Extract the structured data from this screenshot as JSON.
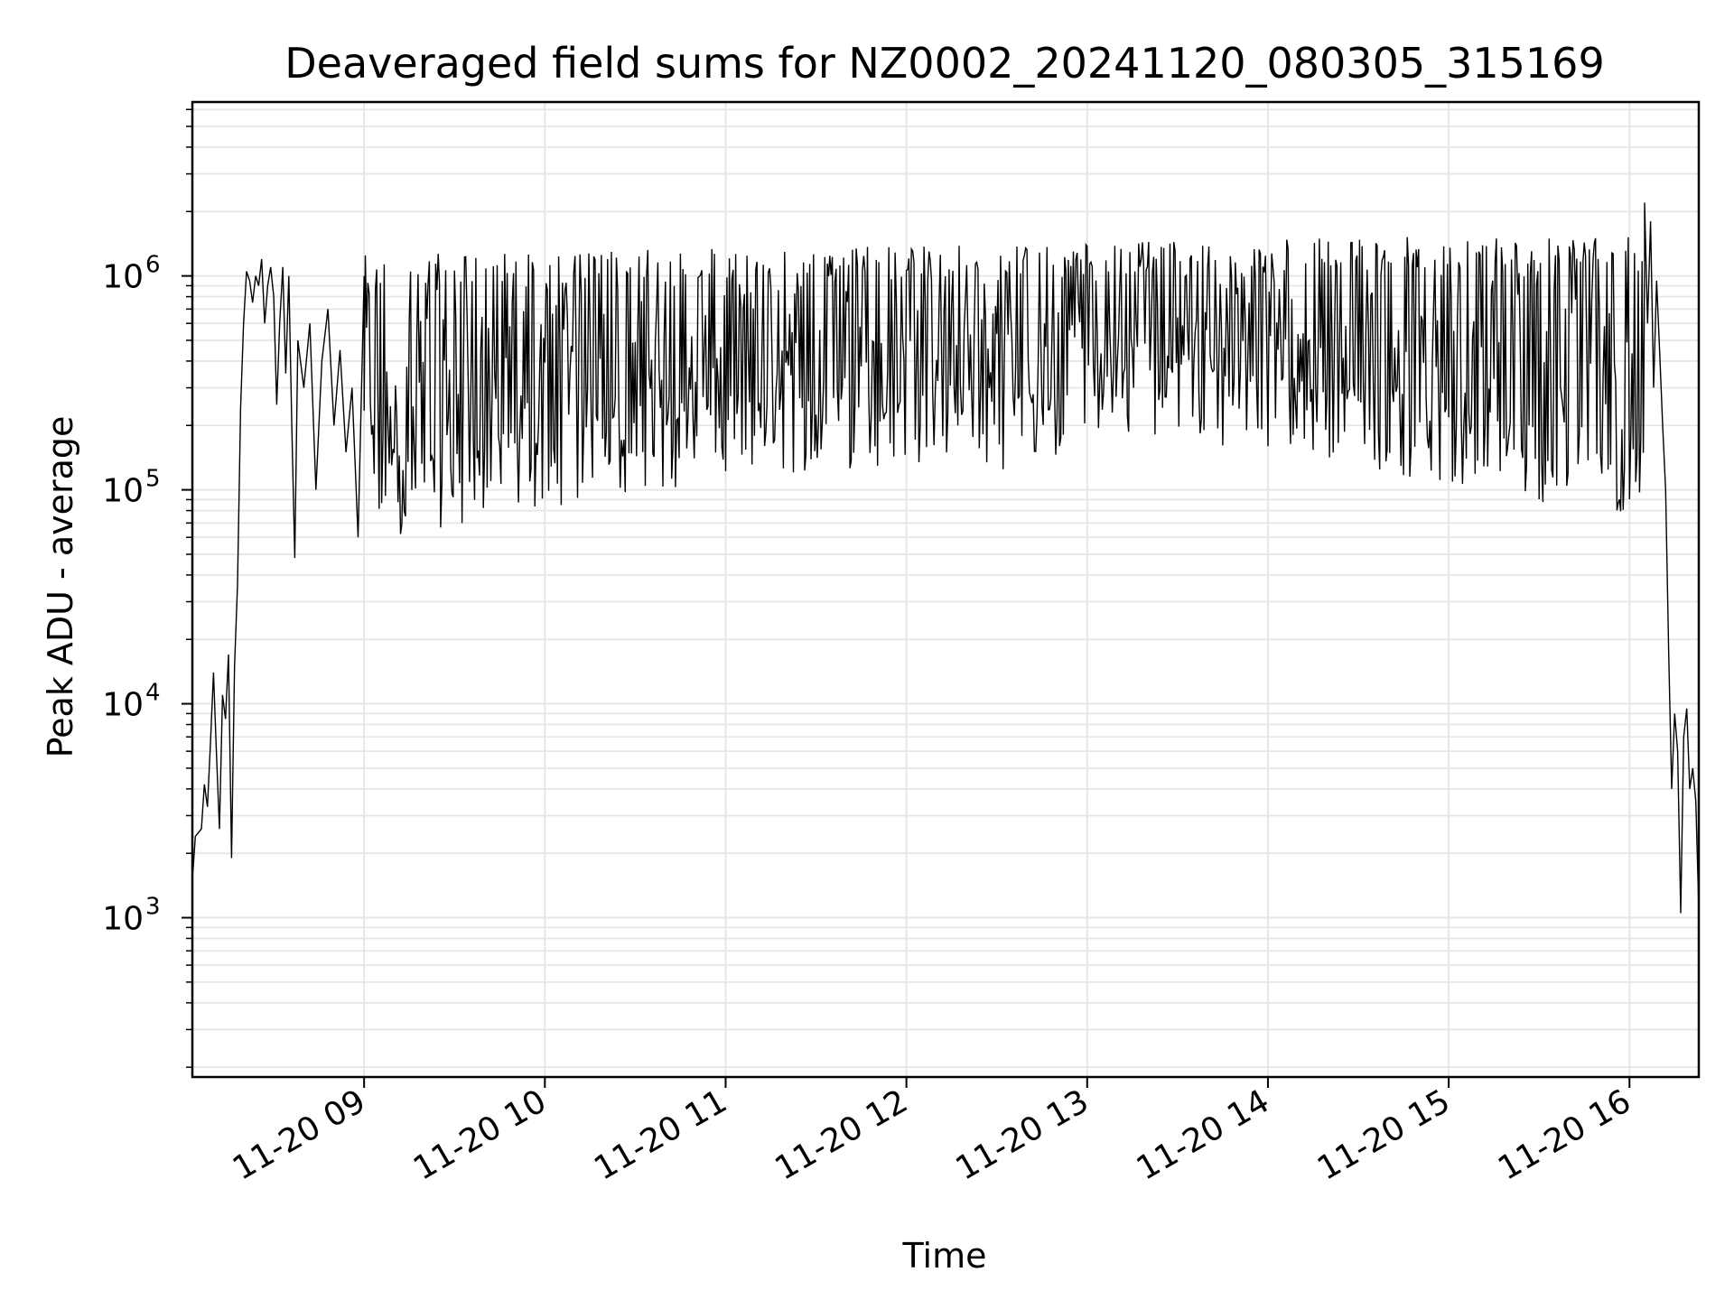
{
  "chart_data": {
    "type": "line",
    "title": "Deaveraged field sums for NZ0002_20241120_080305_315169",
    "xlabel": "Time",
    "ylabel": "Peak ADU - average",
    "yscale": "log",
    "ylim": [
      180,
      6500000
    ],
    "xlim": [
      "2024-11-20 08:03",
      "2024-11-20 16:23"
    ],
    "grid": true,
    "line_color": "#000000",
    "x_ticks": [
      {
        "t": "2024-11-20 09:00",
        "label": "11-20 09"
      },
      {
        "t": "2024-11-20 10:00",
        "label": "11-20 10"
      },
      {
        "t": "2024-11-20 11:00",
        "label": "11-20 11"
      },
      {
        "t": "2024-11-20 12:00",
        "label": "11-20 12"
      },
      {
        "t": "2024-11-20 13:00",
        "label": "11-20 13"
      },
      {
        "t": "2024-11-20 14:00",
        "label": "11-20 14"
      },
      {
        "t": "2024-11-20 15:00",
        "label": "11-20 15"
      },
      {
        "t": "2024-11-20 16:00",
        "label": "11-20 16"
      }
    ],
    "y_ticks": [
      {
        "value": 1000,
        "base": "10",
        "exp": "3"
      },
      {
        "value": 10000,
        "base": "10",
        "exp": "4"
      },
      {
        "value": 100000,
        "base": "10",
        "exp": "5"
      },
      {
        "value": 1000000,
        "base": "10",
        "exp": "6"
      }
    ],
    "series": [
      {
        "points": [
          [
            "2024-11-20 08:03",
            1500
          ],
          [
            "2024-11-20 08:04",
            2400
          ],
          [
            "2024-11-20 08:06",
            2600
          ],
          [
            "2024-11-20 08:07",
            4200
          ],
          [
            "2024-11-20 08:08",
            3300
          ],
          [
            "2024-11-20 08:09",
            6500
          ],
          [
            "2024-11-20 08:10",
            14000
          ],
          [
            "2024-11-20 08:11",
            5800
          ],
          [
            "2024-11-20 08:12",
            2600
          ],
          [
            "2024-11-20 08:13",
            11000
          ],
          [
            "2024-11-20 08:14",
            8500
          ],
          [
            "2024-11-20 08:15",
            17000
          ],
          [
            "2024-11-20 08:16",
            1900
          ],
          [
            "2024-11-20 08:17",
            15000
          ],
          [
            "2024-11-20 08:18",
            36000
          ],
          [
            "2024-11-20 08:19",
            240000
          ],
          [
            "2024-11-20 08:20",
            600000
          ],
          [
            "2024-11-20 08:21",
            1050000
          ],
          [
            "2024-11-20 08:22",
            950000
          ],
          [
            "2024-11-20 08:23",
            750000
          ],
          [
            "2024-11-20 08:24",
            1000000
          ],
          [
            "2024-11-20 08:25",
            900000
          ],
          [
            "2024-11-20 08:26",
            1200000
          ],
          [
            "2024-11-20 08:27",
            600000
          ],
          [
            "2024-11-20 08:28",
            900000
          ],
          [
            "2024-11-20 08:29",
            1100000
          ],
          [
            "2024-11-20 08:30",
            800000
          ],
          [
            "2024-11-20 08:31",
            250000
          ],
          [
            "2024-11-20 08:32",
            600000
          ],
          [
            "2024-11-20 08:33",
            1100000
          ],
          [
            "2024-11-20 08:34",
            350000
          ],
          [
            "2024-11-20 08:35",
            1000000
          ],
          [
            "2024-11-20 08:36",
            200000
          ],
          [
            "2024-11-20 08:37",
            48000
          ],
          [
            "2024-11-20 08:38",
            500000
          ],
          [
            "2024-11-20 08:40",
            300000
          ],
          [
            "2024-11-20 08:42",
            600000
          ],
          [
            "2024-11-20 08:44",
            100000
          ],
          [
            "2024-11-20 08:46",
            400000
          ],
          [
            "2024-11-20 08:48",
            700000
          ],
          [
            "2024-11-20 08:50",
            200000
          ],
          [
            "2024-11-20 08:52",
            450000
          ],
          [
            "2024-11-20 08:54",
            150000
          ],
          [
            "2024-11-20 08:56",
            300000
          ],
          [
            "2024-11-20 08:58",
            60000
          ],
          [
            "2024-11-20 09:00",
            1000000
          ]
        ]
      }
    ]
  }
}
